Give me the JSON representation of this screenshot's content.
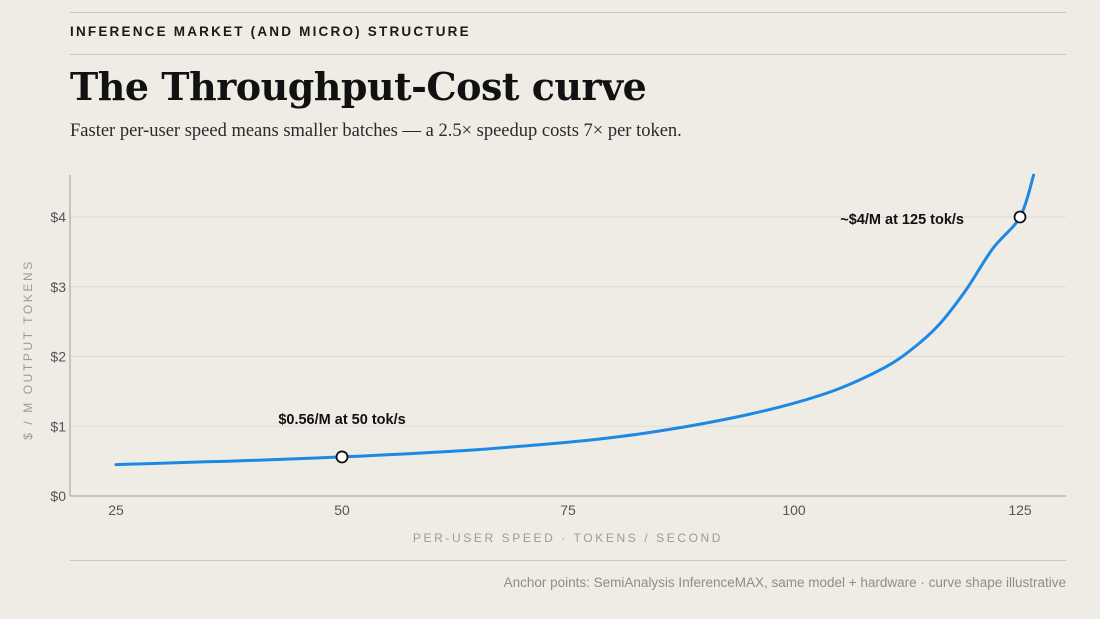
{
  "header": {
    "kicker": "INFERENCE MARKET (AND MICRO) STRUCTURE",
    "title": "The Throughput-Cost curve",
    "subtitle": "Faster per-user speed means smaller batches — a 2.5× speedup costs 7× per token."
  },
  "footnote": "Anchor points: SemiAnalysis InferenceMAX, same model + hardware · curve shape illustrative",
  "colors": {
    "background": "#efece6",
    "curve": "#1e88e5",
    "grid": "#dedbd4",
    "axis": "#9e9c97"
  },
  "chart_data": {
    "type": "line",
    "xlabel": "PER-USER SPEED · TOKENS / SECOND",
    "ylabel": "$ / M OUTPUT TOKENS",
    "xlim": [
      20,
      130
    ],
    "ylim": [
      0,
      4.6
    ],
    "x_ticks": [
      25,
      50,
      75,
      100,
      125
    ],
    "x_tick_labels": [
      "25",
      "50",
      "75",
      "100",
      "125"
    ],
    "y_ticks": [
      0,
      1,
      2,
      3,
      4
    ],
    "y_tick_labels": [
      "$0",
      "$1",
      "$2",
      "$3",
      "$4"
    ],
    "grid": "horizontal",
    "series": [
      {
        "x": [
          25,
          30,
          35,
          40,
          45,
          50,
          55,
          60,
          65,
          70,
          75,
          80,
          85,
          90,
          95,
          100,
          105,
          110,
          113,
          116,
          119,
          122,
          125,
          126.5
        ],
        "y": [
          0.45,
          0.47,
          0.49,
          0.51,
          0.535,
          0.56,
          0.59,
          0.625,
          0.665,
          0.715,
          0.77,
          0.84,
          0.93,
          1.04,
          1.17,
          1.33,
          1.54,
          1.84,
          2.1,
          2.45,
          2.95,
          3.55,
          4.0,
          4.6
        ]
      }
    ],
    "annotations": [
      {
        "x": 50,
        "y": 0.56,
        "label": "$0.56/M at 50 tok/s"
      },
      {
        "x": 125,
        "y": 4.0,
        "label": "~$4/M at 125 tok/s"
      }
    ]
  }
}
